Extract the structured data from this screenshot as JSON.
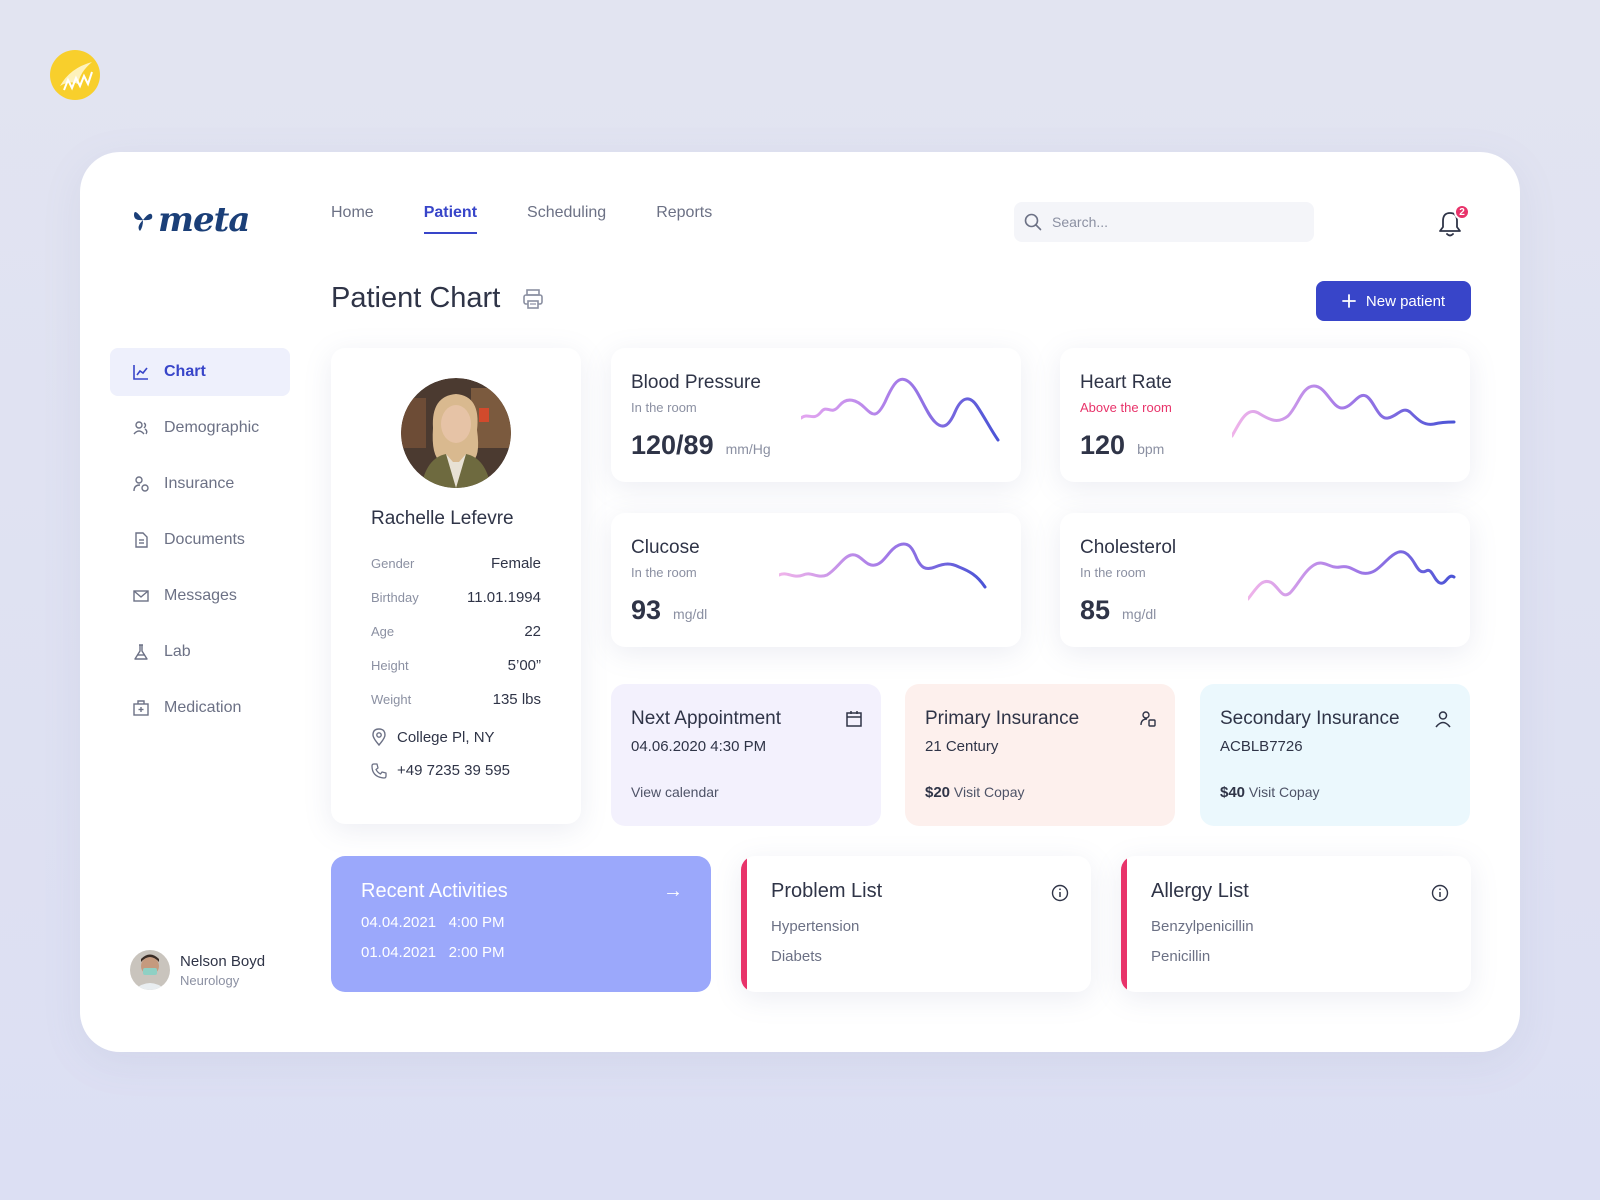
{
  "brand": {
    "logo_text": "meta"
  },
  "nav": {
    "items": [
      {
        "label": "Home",
        "active": false
      },
      {
        "label": "Patient",
        "active": true
      },
      {
        "label": "Scheduling",
        "active": false
      },
      {
        "label": "Reports",
        "active": false
      }
    ]
  },
  "search": {
    "placeholder": "Search..."
  },
  "notifications": {
    "count": "2"
  },
  "page": {
    "title": "Patient Chart"
  },
  "actions": {
    "new_patient": "New patient"
  },
  "sidebar": {
    "items": [
      {
        "label": "Chart",
        "icon": "chart-icon",
        "active": true
      },
      {
        "label": "Demographic",
        "icon": "users-icon",
        "active": false
      },
      {
        "label": "Insurance",
        "icon": "insurance-icon",
        "active": false
      },
      {
        "label": "Documents",
        "icon": "document-icon",
        "active": false
      },
      {
        "label": "Messages",
        "icon": "mail-icon",
        "active": false
      },
      {
        "label": "Lab",
        "icon": "flask-icon",
        "active": false
      },
      {
        "label": "Medication",
        "icon": "medkit-icon",
        "active": false
      }
    ]
  },
  "user": {
    "name": "Nelson Boyd",
    "department": "Neurology"
  },
  "patient": {
    "name": "Rachelle Lefevre",
    "fields": [
      {
        "label": "Gender",
        "value": "Female"
      },
      {
        "label": "Birthday",
        "value": "11.01.1994"
      },
      {
        "label": "Age",
        "value": "22"
      },
      {
        "label": "Height",
        "value": "5’00”"
      },
      {
        "label": "Weight",
        "value": "135 lbs"
      }
    ],
    "location": "College Pl, NY",
    "phone": "+49 7235 39 595"
  },
  "vitals": {
    "blood_pressure": {
      "title": "Blood Pressure",
      "status": "In the room",
      "value": "120/89",
      "unit": "mm/Hg"
    },
    "heart_rate": {
      "title": "Heart Rate",
      "status": "Above the room",
      "value": "120",
      "unit": "bpm"
    },
    "glucose": {
      "title": "Clucose",
      "status": "In the room",
      "value": "93",
      "unit": "mg/dl"
    },
    "cholesterol": {
      "title": "Cholesterol",
      "status": "In the room",
      "value": "85",
      "unit": "mg/dl"
    }
  },
  "appointment": {
    "title": "Next Appointment",
    "datetime": "04.06.2020 4:30 PM",
    "link": "View calendar"
  },
  "primary_insurance": {
    "title": "Primary Insurance",
    "provider": "21 Century",
    "amount": "$20",
    "copay_label": "Visit Copay"
  },
  "secondary_insurance": {
    "title": "Secondary Insurance",
    "provider": "ACBLB7726",
    "amount": "$40",
    "copay_label": "Visit Copay"
  },
  "recent_activities": {
    "title": "Recent Activities",
    "items": [
      {
        "date": "04.04.2021",
        "time": "4:00 PM"
      },
      {
        "date": "01.04.2021",
        "time": "2:00 PM"
      }
    ]
  },
  "problem_list": {
    "title": "Problem List",
    "items": [
      "Hypertension",
      "Diabets"
    ]
  },
  "allergy_list": {
    "title": "Allergy List",
    "items": [
      "Benzylpenicillin",
      "Penicillin"
    ]
  },
  "colors": {
    "accent": "#3845c9",
    "alert": "#e8336a",
    "recent_bg": "#9ba8fb",
    "appointment_bg": "#f3f1fd",
    "primary_bg": "#fdf0ed",
    "secondary_bg": "#ebf8fd"
  }
}
